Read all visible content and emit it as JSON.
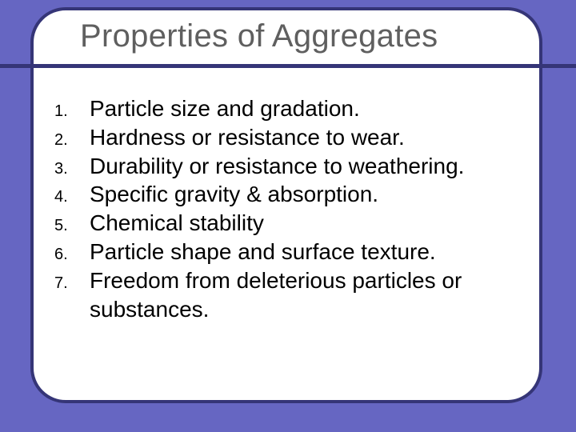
{
  "slide": {
    "background_color": "#6666c2",
    "card": {
      "background_color": "#ffffff",
      "border_color": "#353577",
      "border_width": 4,
      "border_radius": 44
    },
    "title": {
      "text": "Properties of Aggregates",
      "color": "#5f5f5f",
      "font_size": 40
    },
    "divider": {
      "color": "#353577",
      "thickness": 5
    },
    "list": {
      "number_font_size": 20,
      "text_font_size": 28,
      "text_color": "#000000",
      "items": [
        {
          "num": "1.",
          "text": "Particle size and gradation."
        },
        {
          "num": "2.",
          "text": "Hardness or resistance to wear."
        },
        {
          "num": "3.",
          "text": "Durability or resistance to weathering."
        },
        {
          "num": "4.",
          "text": "Specific gravity & absorption."
        },
        {
          "num": "5.",
          "text": "Chemical stability"
        },
        {
          "num": "6.",
          "text": "Particle shape and surface texture."
        },
        {
          "num": "7.",
          "text": "Freedom from deleterious particles or substances."
        }
      ]
    }
  }
}
